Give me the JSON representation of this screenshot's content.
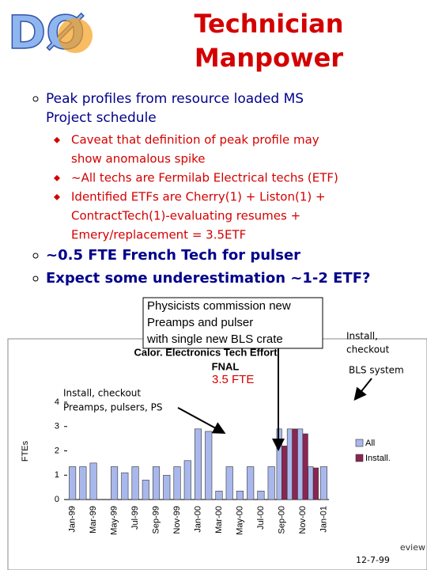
{
  "header": {
    "logo": "DØ",
    "title_line1": "Technician",
    "title_line2": "Manpower"
  },
  "bullets": [
    {
      "text_line1": "Peak profiles from resource loaded MS",
      "text_line2": "Project schedule",
      "sub": [
        {
          "lines": [
            "Caveat that definition of peak profile may",
            "show anomalous spike"
          ]
        },
        {
          "lines": [
            "~All techs are Fermilab Electrical techs (ETF)"
          ]
        },
        {
          "lines": [
            "Identified ETFs are Cherry(1) + Liston(1) +",
            "ContractTech(1)-evaluating resumes +",
            "Emery/replacement = 3.5ETF"
          ]
        }
      ]
    },
    {
      "text_line1": "~0.5 FTE French Tech for pulser"
    },
    {
      "text_line1": "Expect some underestimation ~1-2 ETF?"
    }
  ],
  "callouts": {
    "commission": [
      "Physicists commission new",
      "Preamps and pulser",
      "with single new BLS crate"
    ],
    "bls": [
      "Install,",
      "checkout",
      "BLS system"
    ],
    "preamps": [
      "Install, checkout",
      "Preamps, pulsers, PS"
    ],
    "fte": "3.5 FTE"
  },
  "footer": {
    "review": "eview",
    "date": "12-7-99"
  },
  "chart_data": {
    "type": "bar",
    "title": "Calor. Electronics Tech Effort",
    "subtitle": "FNAL",
    "y_label": "FTEs",
    "categories": [
      "Jan-99",
      null,
      "Mar-99",
      null,
      "May-99",
      null,
      "Jul-99",
      null,
      "Sep-99",
      null,
      "Nov-99",
      null,
      "Jan-00",
      null,
      "Mar-00",
      null,
      "May-00",
      null,
      "Jul-00",
      null,
      "Sep-00",
      null,
      "Nov-00",
      null,
      "Jan-01"
    ],
    "series": [
      {
        "name": "All",
        "color": "#a9b8ec",
        "values": [
          1.35,
          1.35,
          1.5,
          0,
          1.35,
          1.1,
          1.35,
          0.8,
          1.35,
          1.0,
          1.35,
          1.6,
          2.9,
          2.8,
          0.35,
          1.35,
          0.35,
          1.35,
          0.35,
          1.35,
          2.9,
          2.9,
          2.9,
          1.35,
          1.35
        ]
      },
      {
        "name": "Install.",
        "color": "#8b2552",
        "values": [
          null,
          null,
          null,
          null,
          null,
          null,
          null,
          null,
          null,
          null,
          null,
          null,
          null,
          null,
          null,
          null,
          null,
          null,
          null,
          null,
          2.2,
          2.9,
          2.7,
          1.3,
          null
        ]
      }
    ],
    "ylim": [
      0,
      4
    ],
    "yticks": [
      0,
      1,
      2,
      3,
      4
    ],
    "grid": false
  }
}
